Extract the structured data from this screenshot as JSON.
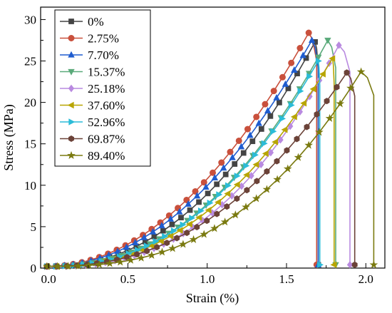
{
  "chart_data": {
    "type": "line",
    "xlabel": "Strain (%)",
    "ylabel": "Stress (MPa)",
    "xlim": [
      -0.05,
      2.12
    ],
    "ylim": [
      0,
      31.5
    ],
    "xticks": [
      0.0,
      0.5,
      1.0,
      1.5,
      2.0
    ],
    "xtick_labels": [
      "0.0",
      "0.5",
      "1.0",
      "1.5",
      "2.0"
    ],
    "yticks": [
      0,
      5,
      10,
      15,
      20,
      25,
      30
    ],
    "ytick_labels": [
      "0",
      "5",
      "10",
      "15",
      "20",
      "25",
      "30"
    ],
    "grid": false,
    "legend_position": "top-left",
    "series": [
      {
        "name": "0%",
        "color": "#444444",
        "marker": "square",
        "peak_strain": 1.68,
        "peak_stress": 27.3,
        "fracture_strain": 1.7,
        "exponent": 2.2
      },
      {
        "name": "2.75%",
        "color": "#c9503c",
        "marker": "circle",
        "peak_strain": 1.64,
        "peak_stress": 28.4,
        "fracture_strain": 1.69,
        "exponent": 2.0
      },
      {
        "name": "7.70%",
        "color": "#1f5ccf",
        "marker": "triangle-up",
        "peak_strain": 1.66,
        "peak_stress": 27.5,
        "fracture_strain": 1.7,
        "exponent": 2.05
      },
      {
        "name": "15.37%",
        "color": "#5aaa7a",
        "marker": "triangle-down",
        "peak_strain": 1.76,
        "peak_stress": 27.5,
        "fracture_strain": 1.81,
        "exponent": 2.3
      },
      {
        "name": "25.18%",
        "color": "#b98ae0",
        "marker": "diamond",
        "peak_strain": 1.83,
        "peak_stress": 26.9,
        "fracture_strain": 1.9,
        "exponent": 2.5
      },
      {
        "name": "37.60%",
        "color": "#b8a500",
        "marker": "triangle-left",
        "peak_strain": 1.79,
        "peak_stress": 25.3,
        "fracture_strain": 1.8,
        "exponent": 2.3
      },
      {
        "name": "52.96%",
        "color": "#2bbcd8",
        "marker": "triangle-right",
        "peak_strain": 1.7,
        "peak_stress": 25.0,
        "fracture_strain": 1.71,
        "exponent": 2.3
      },
      {
        "name": "69.87%",
        "color": "#6b4238",
        "marker": "hexagon",
        "peak_strain": 1.88,
        "peak_stress": 23.6,
        "fracture_strain": 1.93,
        "exponent": 2.3
      },
      {
        "name": "89.40%",
        "color": "#7a7a10",
        "marker": "star",
        "peak_strain": 1.97,
        "peak_stress": 23.7,
        "fracture_strain": 2.05,
        "exponent": 2.6
      }
    ]
  }
}
